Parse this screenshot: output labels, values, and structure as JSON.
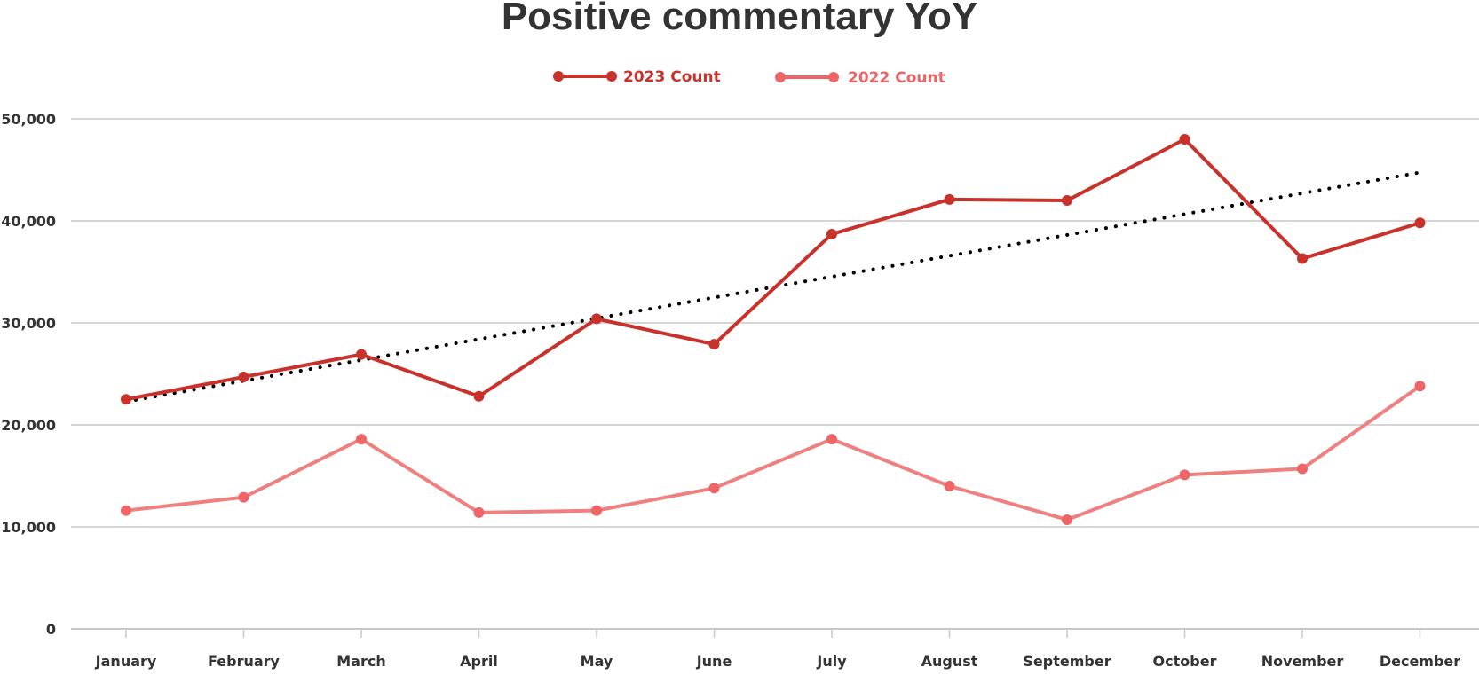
{
  "chart_data": {
    "type": "line",
    "title": "Positive commentary YoY",
    "xlabel": "",
    "ylabel": "",
    "categories": [
      "January",
      "February",
      "March",
      "April",
      "May",
      "June",
      "July",
      "August",
      "September",
      "October",
      "November",
      "December"
    ],
    "y_ticks": [
      "0",
      "10,000",
      "20,000",
      "30,000",
      "40,000",
      "50,000"
    ],
    "y_tick_values": [
      0,
      10000,
      20000,
      30000,
      40000,
      50000
    ],
    "ylim": [
      0,
      50000
    ],
    "grid": true,
    "legend_position": "top-center",
    "series": [
      {
        "name": "2023 Count",
        "color": "#c9312b",
        "values": [
          22500,
          24700,
          26900,
          22800,
          30400,
          27900,
          38700,
          42100,
          42000,
          48000,
          36300,
          39800
        ]
      },
      {
        "name": "2022 Count",
        "color": "#ee8080",
        "marker_color": "#ee6467",
        "legend_color": "#ee6467",
        "values": [
          11600,
          12900,
          18600,
          11400,
          11600,
          13800,
          18600,
          14000,
          10700,
          15100,
          15700,
          23800
        ]
      }
    ],
    "trendline": {
      "series": "2023 Count",
      "type": "linear",
      "style": "dotted",
      "color": "#000000"
    }
  }
}
